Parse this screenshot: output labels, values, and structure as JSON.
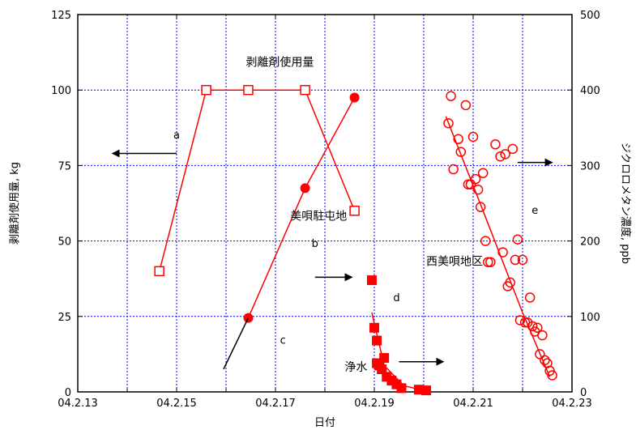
{
  "chart_data": {
    "type": "scatter",
    "x_axis": {
      "label": "日付",
      "range": [
        13,
        23
      ],
      "ticks": [
        13,
        15,
        17,
        19,
        21,
        23
      ],
      "tick_labels": [
        "04.2.13",
        "04.2.15",
        "04.2.17",
        "04.2.19",
        "04.2.21",
        "04.2.23"
      ],
      "minor_grid": [
        14,
        16,
        18,
        20,
        22
      ]
    },
    "y_left": {
      "label": "剥離剤使用量, kg",
      "range": [
        0,
        125
      ],
      "ticks": [
        0,
        25,
        50,
        75,
        100,
        125
      ],
      "tick_labels": [
        "0",
        "25",
        "50",
        "75",
        "100",
        "125"
      ]
    },
    "y_right": {
      "label": "ジクロロメタン濃度, ppb",
      "range": [
        0,
        500
      ],
      "ticks": [
        0,
        100,
        200,
        300,
        400,
        500
      ],
      "tick_labels": [
        "0",
        "100",
        "200",
        "300",
        "400",
        "500"
      ]
    },
    "grid": true,
    "series": [
      {
        "id": "a",
        "axis": "left",
        "marker": "open-square",
        "line": true,
        "color": "#ff0000",
        "points": [
          [
            14.65,
            40
          ],
          [
            15.6,
            100
          ],
          [
            16.45,
            100
          ],
          [
            17.6,
            100
          ],
          [
            18.6,
            60
          ]
        ]
      },
      {
        "id": "b",
        "axis": "right",
        "marker": "filled-circle",
        "line": true,
        "color": "#ff0000",
        "points": [
          [
            16.45,
            98
          ],
          [
            17.6,
            270
          ],
          [
            18.6,
            390
          ]
        ]
      },
      {
        "id": "c",
        "axis": "right",
        "marker": "none",
        "line": true,
        "color": "#000000",
        "points": [
          [
            15.95,
            30
          ],
          [
            16.45,
            98
          ]
        ]
      },
      {
        "id": "d",
        "axis": "right",
        "marker": "filled-square",
        "line": false,
        "color": "#ff0000",
        "points": [
          [
            18.95,
            148
          ],
          [
            19.0,
            85
          ],
          [
            19.05,
            68
          ],
          [
            19.05,
            38
          ],
          [
            19.1,
            35
          ],
          [
            19.15,
            30
          ],
          [
            19.2,
            45
          ],
          [
            19.25,
            20
          ],
          [
            19.35,
            15
          ],
          [
            19.45,
            10
          ],
          [
            19.55,
            5
          ],
          [
            19.9,
            3
          ],
          [
            20.05,
            2
          ]
        ]
      },
      {
        "id": "d-trend",
        "axis": "right",
        "marker": "none",
        "line": true,
        "color": "#ff0000",
        "points": [
          [
            18.95,
            105
          ],
          [
            19.2,
            35
          ],
          [
            19.6,
            8
          ],
          [
            20.0,
            2
          ]
        ]
      },
      {
        "id": "e",
        "axis": "right",
        "marker": "open-circle",
        "line": false,
        "color": "#ff0000",
        "points": [
          [
            20.55,
            392
          ],
          [
            20.5,
            356
          ],
          [
            20.6,
            295
          ],
          [
            20.7,
            335
          ],
          [
            20.75,
            318
          ],
          [
            20.85,
            380
          ],
          [
            20.9,
            275
          ],
          [
            20.95,
            275
          ],
          [
            21.0,
            338
          ],
          [
            21.05,
            282
          ],
          [
            21.1,
            268
          ],
          [
            21.15,
            245
          ],
          [
            21.2,
            290
          ],
          [
            21.25,
            200
          ],
          [
            21.3,
            172
          ],
          [
            21.35,
            172
          ],
          [
            21.45,
            328
          ],
          [
            21.55,
            312
          ],
          [
            21.6,
            185
          ],
          [
            21.65,
            315
          ],
          [
            21.7,
            140
          ],
          [
            21.75,
            145
          ],
          [
            21.8,
            322
          ],
          [
            21.85,
            175
          ],
          [
            21.9,
            202
          ],
          [
            21.95,
            95
          ],
          [
            22.0,
            175
          ],
          [
            22.05,
            92
          ],
          [
            22.1,
            92
          ],
          [
            22.15,
            125
          ],
          [
            22.2,
            87
          ],
          [
            22.25,
            80
          ],
          [
            22.3,
            85
          ],
          [
            22.35,
            50
          ],
          [
            22.4,
            75
          ],
          [
            22.45,
            42
          ],
          [
            22.5,
            38
          ],
          [
            22.55,
            28
          ],
          [
            22.6,
            22
          ]
        ]
      },
      {
        "id": "e-trend",
        "axis": "right",
        "marker": "none",
        "line": true,
        "color": "#ff0000",
        "points": [
          [
            20.45,
            365
          ],
          [
            21.2,
            240
          ],
          [
            22.0,
            105
          ],
          [
            22.55,
            20
          ]
        ]
      }
    ],
    "annotations": [
      {
        "text": "剥離剤使用量",
        "x": 16.4,
        "y_left": 108
      },
      {
        "text": "美唄駐屯地",
        "x": 17.3,
        "y_left": 57
      },
      {
        "text": "西美唄地区",
        "x": 20.05,
        "y_left": 42
      },
      {
        "text": "浄水",
        "x": 18.4,
        "y_left": 7
      },
      {
        "text": "a",
        "x": 15.0,
        "y_left": 84
      },
      {
        "text": "b",
        "x": 17.8,
        "y_left": 48
      },
      {
        "text": "c",
        "x": 17.15,
        "y_left": 16
      },
      {
        "text": "d",
        "x": 19.45,
        "y_left": 30
      },
      {
        "text": "e",
        "x": 22.25,
        "y_left": 59
      }
    ],
    "arrows": [
      {
        "direction": "left",
        "from": [
          15.0,
          79
        ],
        "to": [
          13.7,
          79
        ]
      },
      {
        "direction": "right",
        "from": [
          17.8,
          38
        ],
        "to": [
          18.55,
          38
        ]
      },
      {
        "direction": "right",
        "from": [
          19.5,
          10
        ],
        "to": [
          20.4,
          10
        ]
      },
      {
        "direction": "right",
        "from": [
          21.9,
          76
        ],
        "to": [
          22.6,
          76
        ]
      }
    ]
  }
}
